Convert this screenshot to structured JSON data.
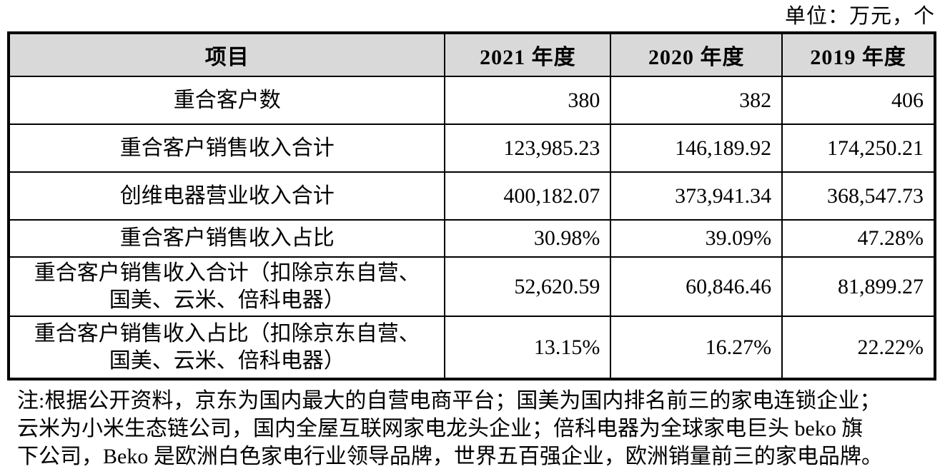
{
  "unit_label": "单位：万元，个",
  "colors": {
    "header_bg": "#d9d9d9",
    "border": "#000000",
    "text": "#000000"
  },
  "table": {
    "columns": [
      "项目",
      "2021 年度",
      "2020 年度",
      "2019 年度"
    ],
    "rows": [
      {
        "label": "重合客户数",
        "values": [
          "380",
          "382",
          "406"
        ]
      },
      {
        "label": "重合客户销售收入合计",
        "values": [
          "123,985.23",
          "146,189.92",
          "174,250.21"
        ]
      },
      {
        "label": "创维电器营业收入合计",
        "values": [
          "400,182.07",
          "373,941.34",
          "368,547.73"
        ]
      },
      {
        "label": "重合客户销售收入占比",
        "values": [
          "30.98%",
          "39.09%",
          "47.28%"
        ]
      },
      {
        "label": "重合客户销售收入合计（扣除京东自营、\n国美、云米、倍科电器）",
        "values": [
          "52,620.59",
          "60,846.46",
          "81,899.27"
        ]
      },
      {
        "label": "重合客户销售收入占比（扣除京东自营、\n国美、云米、倍科电器）",
        "values": [
          "13.15%",
          "16.27%",
          "22.22%"
        ]
      }
    ]
  },
  "note": {
    "lines": [
      "注:根据公开资料，京东为国内最大的自营电商平台；国美为国内排名前三的家电连锁企业；",
      "云米为小米生态链公司，国内全屋互联网家电龙头企业；倍科电器为全球家电巨头 beko 旗",
      "下公司，Beko 是欧洲白色家电行业领导品牌，世界五百强企业，欧洲销量前三的家电品牌。"
    ]
  }
}
